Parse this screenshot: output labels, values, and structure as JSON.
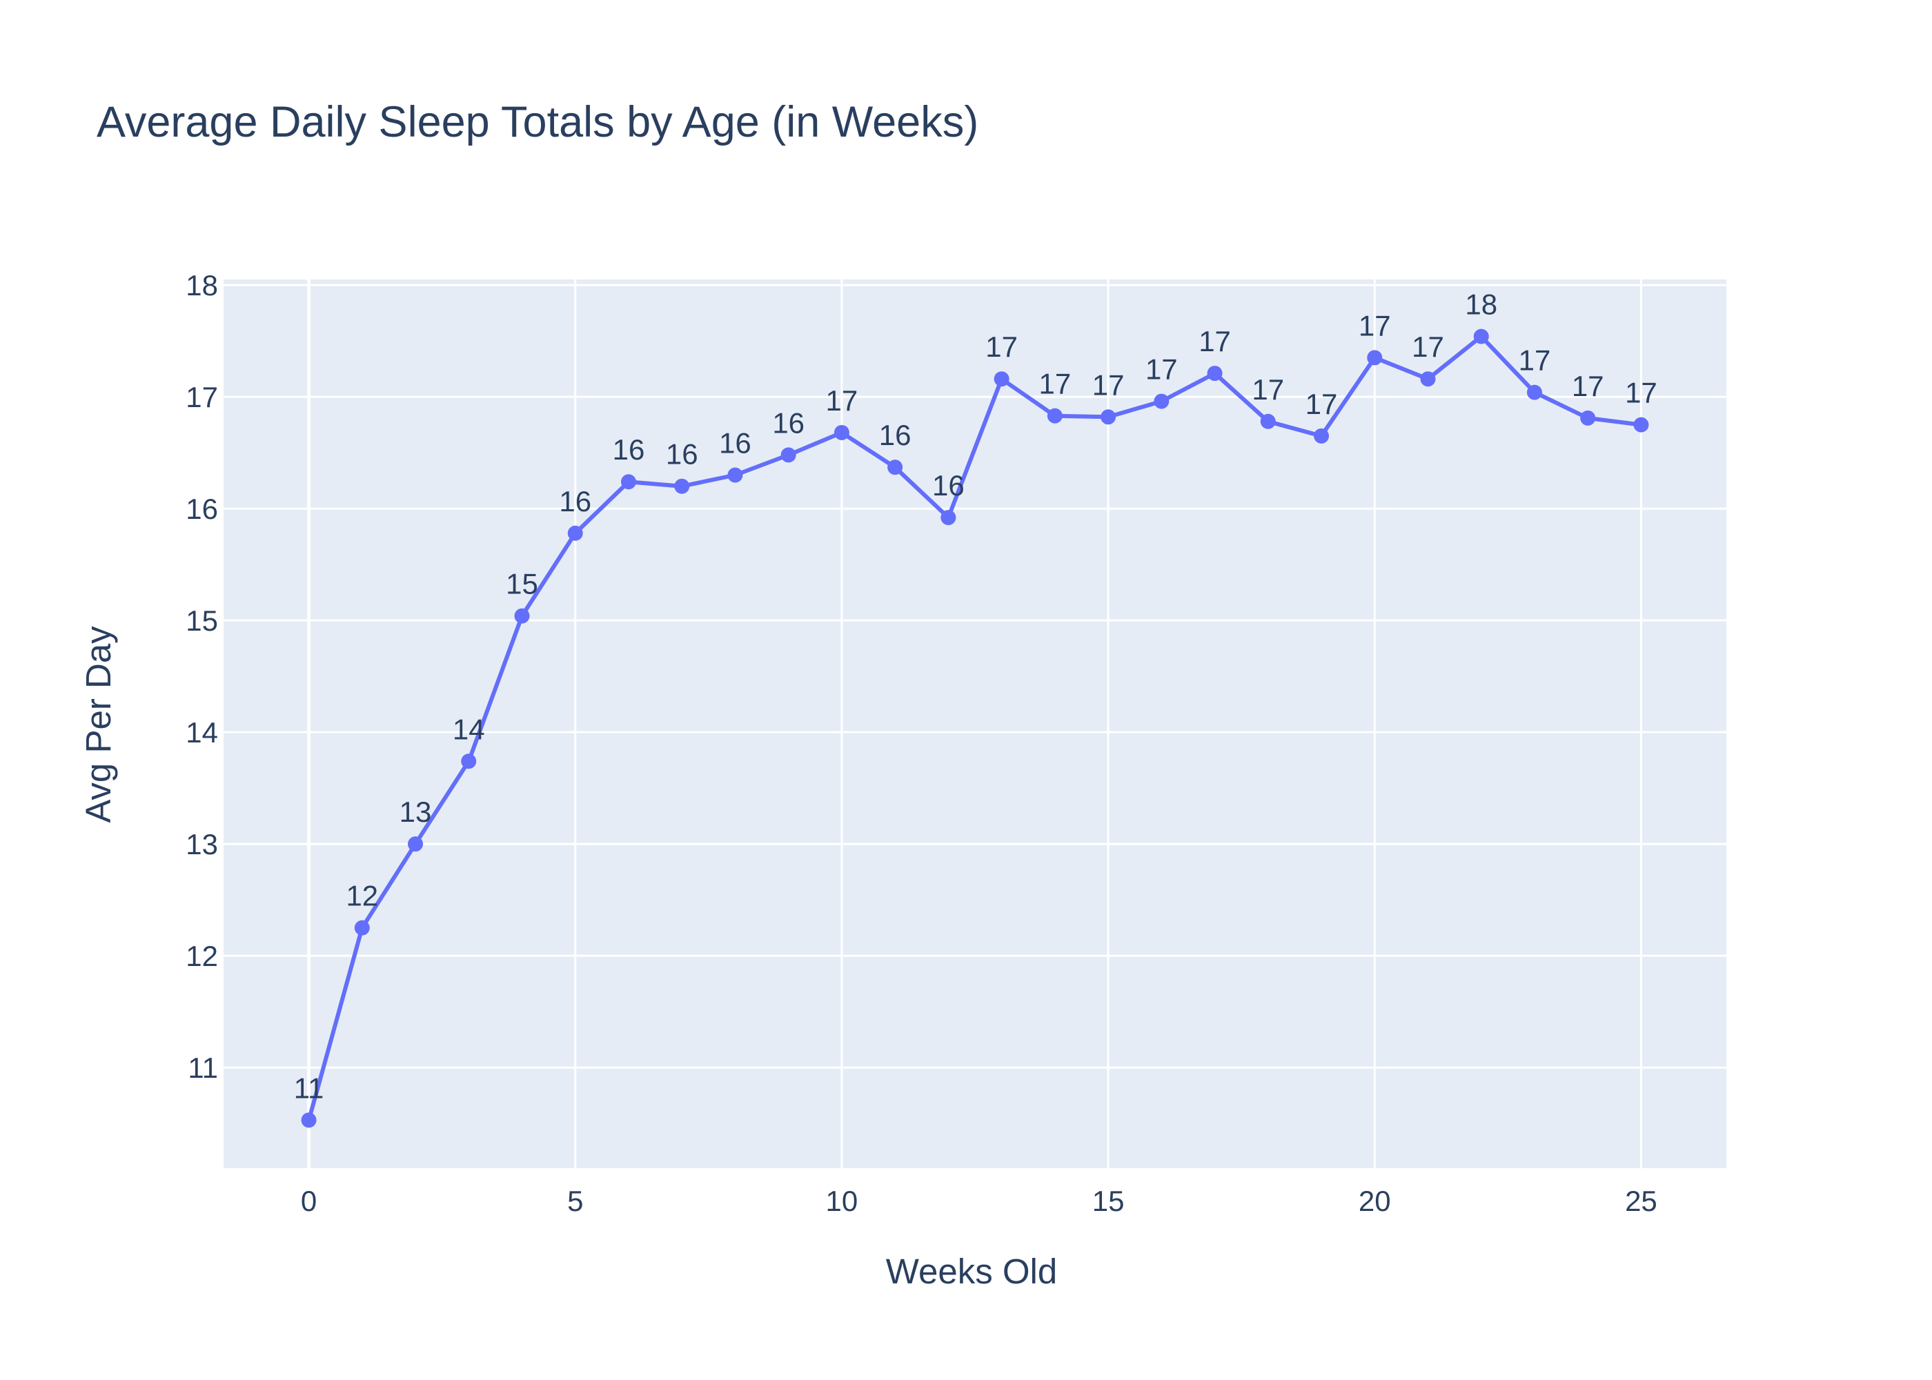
{
  "chart_data": {
    "type": "line",
    "title": "Average Daily Sleep Totals by Age (in Weeks)",
    "xlabel": "Weeks Old",
    "ylabel": "Avg Per Day",
    "xlim": [
      -1.6,
      26.6
    ],
    "ylim": [
      10.1,
      18.05
    ],
    "x_ticks": [
      0,
      5,
      10,
      15,
      20,
      25
    ],
    "y_ticks": [
      11,
      12,
      13,
      14,
      15,
      16,
      17,
      18
    ],
    "grid": true,
    "legend": "none",
    "colors": {
      "line": "#636efa",
      "plot_bg": "#e5ecf6",
      "text": "#2a3f5f"
    },
    "series": [
      {
        "x": [
          0,
          1,
          2,
          3,
          4,
          5,
          6,
          7,
          8,
          9,
          10,
          11,
          12,
          13,
          14,
          15,
          16,
          17,
          18,
          19,
          20,
          21,
          22,
          23,
          24,
          25
        ],
        "y": [
          10.53,
          12.25,
          13.0,
          13.74,
          15.04,
          15.78,
          16.24,
          16.2,
          16.3,
          16.48,
          16.68,
          16.37,
          15.92,
          17.16,
          16.83,
          16.82,
          16.96,
          17.21,
          16.78,
          16.65,
          17.35,
          17.16,
          17.54,
          17.04,
          16.81,
          16.75
        ],
        "labels": [
          "11",
          "12",
          "13",
          "14",
          "15",
          "16",
          "16",
          "16",
          "16",
          "16",
          "17",
          "16",
          "16",
          "17",
          "17",
          "17",
          "17",
          "17",
          "17",
          "17",
          "17",
          "17",
          "18",
          "17",
          "17",
          "17"
        ]
      }
    ]
  }
}
